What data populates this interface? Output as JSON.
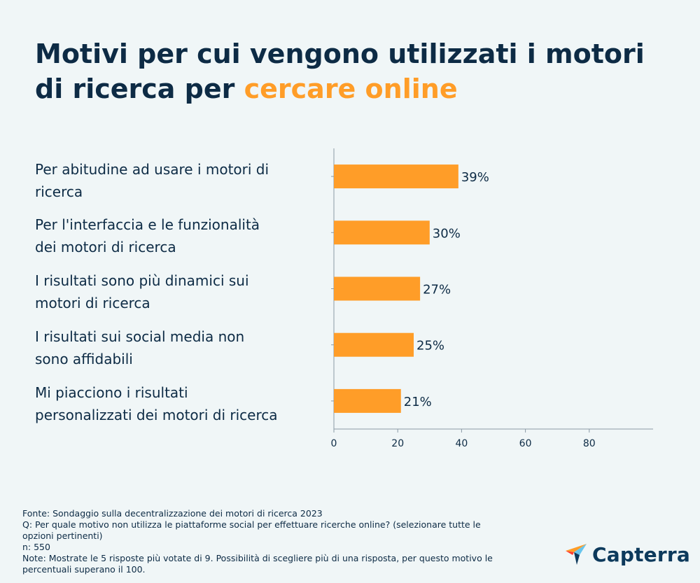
{
  "title": {
    "main": "Motivi per cui vengono utilizzati i motori di ricerca per",
    "accent": "cercare online"
  },
  "colors": {
    "bar": "#ff9d28",
    "axis": "#8a9aa6",
    "text": "#0d2b45",
    "background": "#f0f6f7"
  },
  "chart_data": {
    "type": "bar",
    "orientation": "horizontal",
    "categories": [
      "Per abitudine ad usare i motori di ricerca",
      "Per l'interfaccia e le funzionalità dei motori di ricerca",
      "I risultati sono più dinamici sui motori di ricerca",
      "I risultati sui social media non sono affidabili",
      "Mi piacciono i risultati personalizzati dei motori di ricerca"
    ],
    "values": [
      39,
      30,
      27,
      25,
      21
    ],
    "value_labels": [
      "39%",
      "30%",
      "27%",
      "25%",
      "21%"
    ],
    "xlim": [
      0,
      100
    ],
    "xticks": [
      0,
      20,
      40,
      60,
      80
    ],
    "xtick_labels": [
      "0",
      "20",
      "40",
      "60",
      "80"
    ],
    "xlabel": "",
    "ylabel": "",
    "grid": false,
    "legend": "none"
  },
  "category_lines": [
    [
      "Per abitudine ad usare i motori di",
      "ricerca"
    ],
    [
      "Per l'interfaccia e le funzionalità",
      "dei motori di ricerca"
    ],
    [
      "I risultati sono più dinamici sui",
      "motori di ricerca"
    ],
    [
      "I risultati sui social media non",
      "sono affidabili"
    ],
    [
      "Mi piacciono i risultati",
      "personalizzati dei motori di ricerca"
    ]
  ],
  "footer": {
    "source": "Fonte: Sondaggio sulla decentralizzazione dei motori di ricerca 2023",
    "question": "Q: Per quale motivo non utilizza le piattaforme social per effettuare ricerche online? (selezionare tutte le opzioni pertinenti)",
    "n": "n: 550",
    "note": "Note: Mostrate le 5 risposte più votate di 9. Possibilità di scegliere più di una risposta, per questo motivo le percentuali superano il 100."
  },
  "logo": {
    "text": "Capterra",
    "icon": "capterra-arrow-icon",
    "colors": [
      "#ff9d28",
      "#68c5ed",
      "#0d3a5c",
      "#ff3d2e"
    ]
  }
}
